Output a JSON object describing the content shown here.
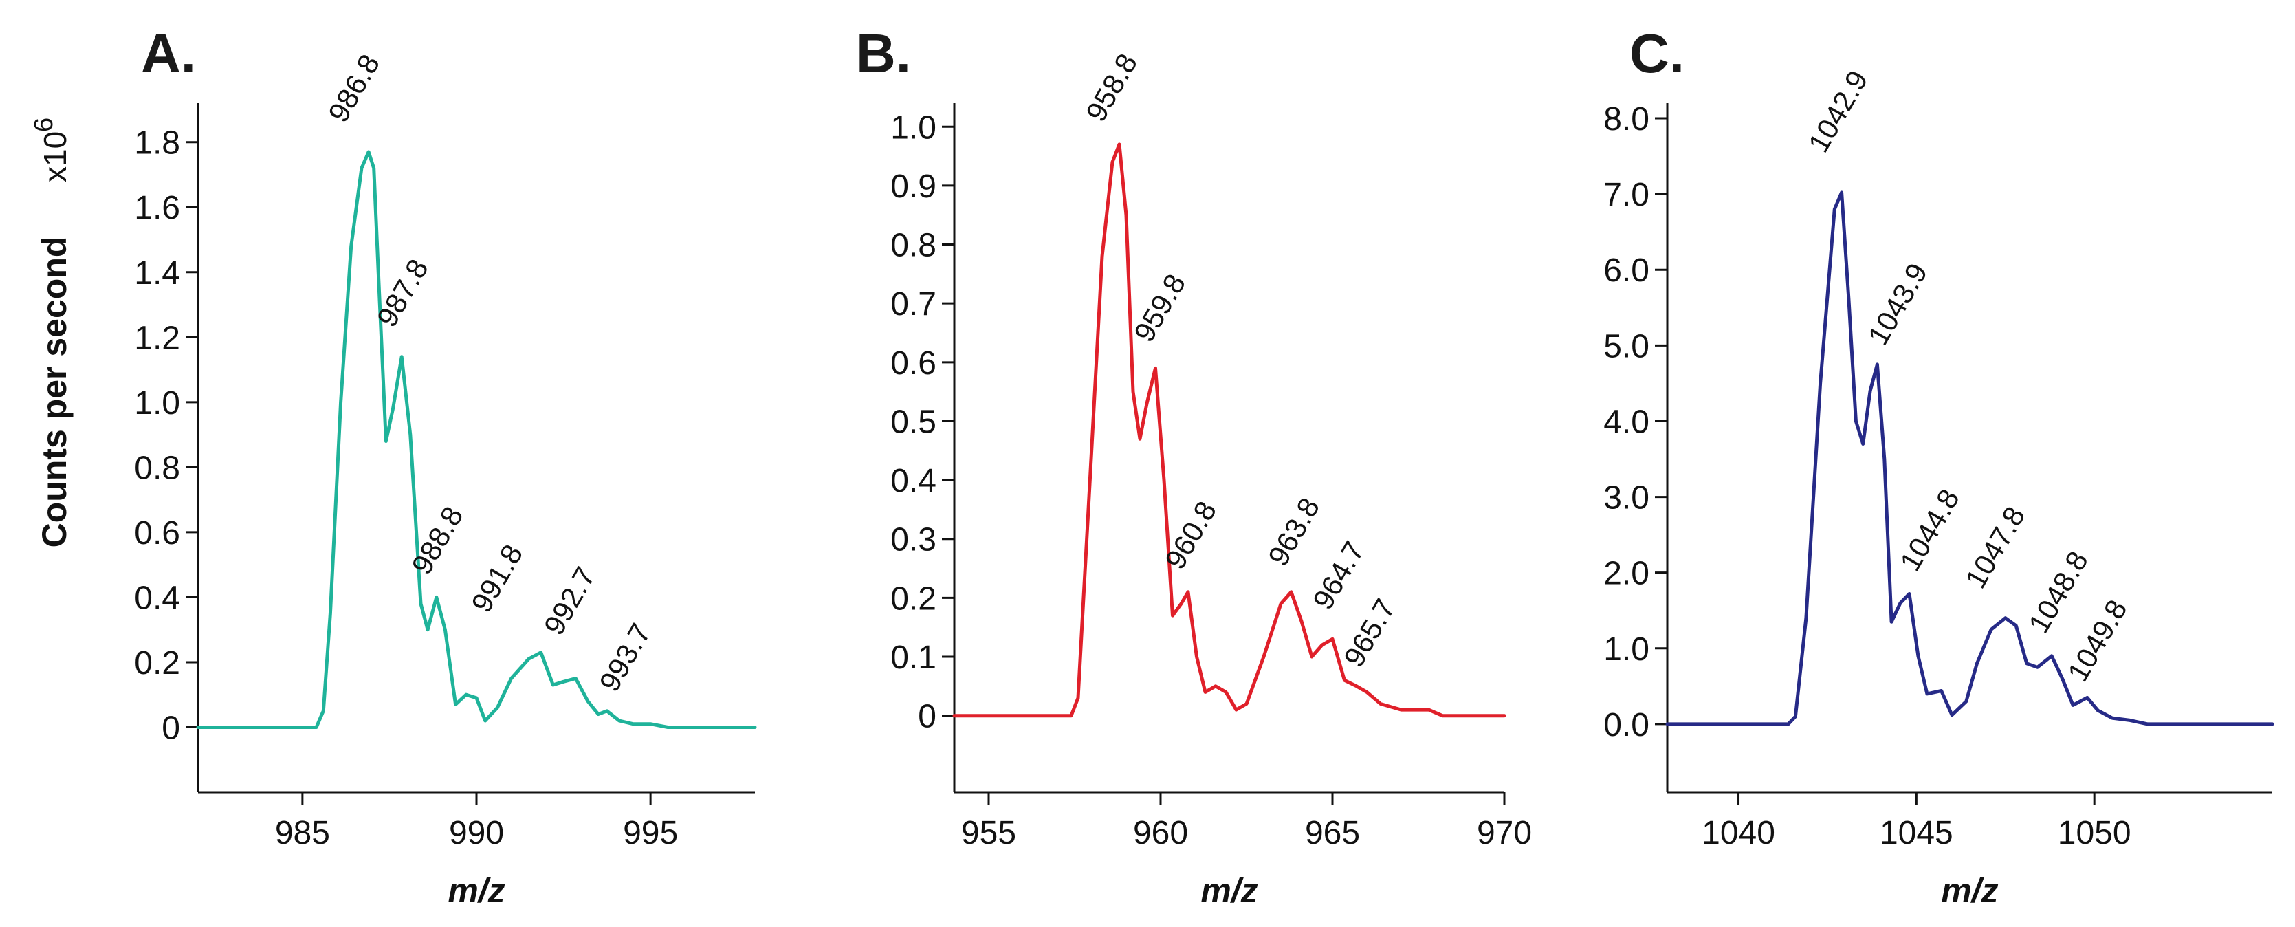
{
  "figure": {
    "ylabel": "Counts per second",
    "ylabel_multiplier": "x10",
    "ylabel_exponent": "6"
  },
  "chart_data": [
    {
      "type": "line",
      "panel_label": "A.",
      "xlabel": "m/z",
      "color": "#1fb39a",
      "xlim": [
        982,
        998
      ],
      "ylim": [
        -0.2,
        1.92
      ],
      "xticks": [
        985,
        990,
        995
      ],
      "xtick_labels": [
        "985",
        "990",
        "995"
      ],
      "yticks": [
        0,
        0.2,
        0.4,
        0.6,
        0.8,
        1.0,
        1.2,
        1.4,
        1.6,
        1.8
      ],
      "ytick_labels": [
        "0",
        "0.2",
        "0.4",
        "0.6",
        "0.8",
        "1.0",
        "1.2",
        "1.4",
        "1.6",
        "1.8"
      ],
      "x": [
        982.0,
        985.4,
        985.6,
        985.8,
        986.1,
        986.4,
        986.7,
        986.9,
        987.05,
        987.2,
        987.4,
        987.6,
        987.85,
        988.1,
        988.4,
        988.6,
        988.85,
        989.1,
        989.4,
        989.7,
        990.0,
        990.25,
        990.6,
        991.0,
        991.5,
        991.85,
        992.2,
        992.5,
        992.85,
        993.2,
        993.5,
        993.75,
        994.1,
        994.5,
        995.0,
        995.5,
        998.0
      ],
      "y": [
        0,
        0,
        0.05,
        0.35,
        1.0,
        1.48,
        1.72,
        1.77,
        1.72,
        1.35,
        0.88,
        0.98,
        1.14,
        0.9,
        0.38,
        0.3,
        0.4,
        0.3,
        0.07,
        0.1,
        0.09,
        0.02,
        0.06,
        0.15,
        0.21,
        0.23,
        0.13,
        0.14,
        0.15,
        0.08,
        0.04,
        0.05,
        0.02,
        0.01,
        0.01,
        0,
        0
      ],
      "peaks": [
        {
          "mz": 986.8,
          "label": "986.8",
          "y": 1.77
        },
        {
          "mz": 987.8,
          "label": "987.8",
          "y": 1.14
        },
        {
          "mz": 988.8,
          "label": "988.8",
          "y": 0.4
        },
        {
          "mz": 991.8,
          "label": "991.8",
          "y": 0.23
        },
        {
          "mz": 992.7,
          "label": "992.7",
          "y": 0.15
        },
        {
          "mz": 993.7,
          "label": "993.7",
          "y": 0.05
        }
      ]
    },
    {
      "type": "line",
      "panel_label": "B.",
      "xlabel": "m/z",
      "color": "#e0202a",
      "xlim": [
        954,
        970
      ],
      "ylim": [
        -0.13,
        1.04
      ],
      "xticks": [
        955,
        960,
        965,
        970
      ],
      "xtick_labels": [
        "955",
        "960",
        "965",
        "970"
      ],
      "yticks": [
        0,
        0.1,
        0.2,
        0.3,
        0.4,
        0.5,
        0.6,
        0.7,
        0.8,
        0.9,
        1.0
      ],
      "ytick_labels": [
        "0",
        "0.1",
        "0.2",
        "0.3",
        "0.4",
        "0.5",
        "0.6",
        "0.7",
        "0.8",
        "0.9",
        "1.0"
      ],
      "x": [
        954.0,
        957.4,
        957.6,
        957.9,
        958.3,
        958.6,
        958.8,
        959.0,
        959.2,
        959.4,
        959.6,
        959.85,
        960.1,
        960.35,
        960.6,
        960.8,
        961.05,
        961.3,
        961.6,
        961.9,
        962.2,
        962.5,
        963.0,
        963.5,
        963.8,
        964.1,
        964.4,
        964.7,
        965.0,
        965.35,
        965.7,
        966.0,
        966.4,
        967.0,
        967.8,
        968.2,
        970.0
      ],
      "y": [
        0,
        0,
        0.03,
        0.35,
        0.78,
        0.94,
        0.97,
        0.85,
        0.55,
        0.47,
        0.53,
        0.59,
        0.4,
        0.17,
        0.19,
        0.21,
        0.1,
        0.04,
        0.05,
        0.04,
        0.01,
        0.02,
        0.1,
        0.19,
        0.21,
        0.16,
        0.1,
        0.12,
        0.13,
        0.06,
        0.05,
        0.04,
        0.02,
        0.01,
        0.01,
        0,
        0
      ],
      "peaks": [
        {
          "mz": 958.8,
          "label": "958.8",
          "y": 0.97
        },
        {
          "mz": 959.8,
          "label": "959.8",
          "y": 0.59
        },
        {
          "mz": 960.8,
          "label": "960.8",
          "y": 0.21
        },
        {
          "mz": 963.8,
          "label": "963.8",
          "y": 0.21
        },
        {
          "mz": 964.7,
          "label": "964.7",
          "y": 0.13
        },
        {
          "mz": 965.7,
          "label": "965.7",
          "y": 0.05
        }
      ]
    },
    {
      "type": "line",
      "panel_label": "C.",
      "xlabel": "m/z",
      "color": "#262a87",
      "xlim": [
        1038,
        1055
      ],
      "ylim": [
        -0.9,
        8.2
      ],
      "xticks": [
        1040,
        1045,
        1050
      ],
      "xtick_labels": [
        "1040",
        "1045",
        "1050"
      ],
      "yticks": [
        0,
        1,
        2,
        3,
        4,
        5,
        6,
        7,
        8
      ],
      "ytick_labels": [
        "0.0",
        "1.0",
        "2.0",
        "3.0",
        "4.0",
        "5.0",
        "6.0",
        "7.0",
        "8.0"
      ],
      "x": [
        1038.0,
        1041.4,
        1041.6,
        1041.9,
        1042.3,
        1042.7,
        1042.9,
        1043.1,
        1043.3,
        1043.5,
        1043.7,
        1043.9,
        1044.1,
        1044.3,
        1044.55,
        1044.8,
        1045.05,
        1045.3,
        1045.7,
        1046.0,
        1046.4,
        1046.7,
        1047.1,
        1047.5,
        1047.8,
        1048.1,
        1048.4,
        1048.8,
        1049.1,
        1049.4,
        1049.8,
        1050.1,
        1050.5,
        1051.0,
        1051.5,
        1055.0
      ],
      "y": [
        0,
        0,
        0.1,
        1.4,
        4.5,
        6.8,
        7.02,
        5.6,
        4.0,
        3.7,
        4.4,
        4.75,
        3.5,
        1.35,
        1.6,
        1.72,
        0.9,
        0.4,
        0.44,
        0.12,
        0.3,
        0.8,
        1.25,
        1.4,
        1.3,
        0.8,
        0.75,
        0.9,
        0.6,
        0.25,
        0.35,
        0.18,
        0.08,
        0.05,
        0,
        0
      ],
      "peaks": [
        {
          "mz": 1042.9,
          "label": "1042.9",
          "y": 7.02
        },
        {
          "mz": 1043.9,
          "label": "1043.9",
          "y": 4.75
        },
        {
          "mz": 1044.8,
          "label": "1044.8",
          "y": 1.72
        },
        {
          "mz": 1047.8,
          "label": "1047.8",
          "y": 1.4
        },
        {
          "mz": 1048.8,
          "label": "1048.8",
          "y": 0.9
        },
        {
          "mz": 1049.8,
          "label": "1049.8",
          "y": 0.35
        }
      ]
    }
  ]
}
